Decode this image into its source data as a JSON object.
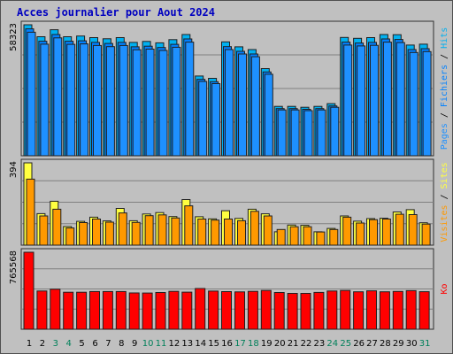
{
  "title": "Acces journalier pour Aout 2024",
  "colors": {
    "pages": "#1e90ff",
    "hits": "#00b0f0",
    "files": "#0080ff",
    "visits": "#ff9900",
    "sites": "#ffff40",
    "kb": "#ff0000",
    "weekend": "#00805a",
    "weekday": "#000000"
  },
  "chart_data": [
    {
      "type": "bar",
      "ylabel_max": "58323",
      "legend": [
        "Pages",
        "Fichiers",
        "Hits"
      ],
      "categories": [
        "1",
        "2",
        "3",
        "4",
        "5",
        "6",
        "7",
        "8",
        "9",
        "10",
        "11",
        "12",
        "13",
        "14",
        "15",
        "16",
        "17",
        "18",
        "19",
        "20",
        "21",
        "22",
        "23",
        "24",
        "25",
        "26",
        "27",
        "28",
        "29",
        "30",
        "31"
      ],
      "weekend_days": [
        "3",
        "4",
        "10",
        "11",
        "17",
        "18",
        "24",
        "25",
        "31"
      ],
      "ylim": [
        0,
        58323
      ],
      "series": [
        {
          "name": "Hits",
          "values": [
            58323,
            53000,
            56100,
            53000,
            53300,
            52600,
            52100,
            52600,
            50500,
            50900,
            50300,
            51700,
            54000,
            35500,
            34500,
            50700,
            48500,
            47300,
            38800,
            22000,
            22000,
            21600,
            22000,
            23200,
            52700,
            52300,
            52600,
            54000,
            53900,
            49300,
            49700
          ]
        },
        {
          "name": "Fichiers",
          "values": [
            56500,
            51000,
            54000,
            51000,
            51200,
            50500,
            50000,
            50500,
            48500,
            48800,
            48200,
            49600,
            52000,
            34000,
            33000,
            48600,
            46500,
            45300,
            37300,
            21000,
            21000,
            20700,
            21000,
            22200,
            50600,
            50200,
            50500,
            52000,
            51800,
            47300,
            47700
          ]
        },
        {
          "name": "Pages",
          "values": [
            55000,
            49700,
            52500,
            49600,
            49800,
            49100,
            48600,
            49100,
            47200,
            47500,
            46900,
            48300,
            50600,
            33100,
            32100,
            47300,
            45300,
            44100,
            36300,
            20400,
            20400,
            20100,
            20400,
            21600,
            49300,
            48900,
            49200,
            50600,
            50400,
            46000,
            46400
          ]
        }
      ]
    },
    {
      "type": "bar",
      "ylabel_max": "394",
      "legend": [
        "Visites",
        "Sites"
      ],
      "categories": [
        "1",
        "2",
        "3",
        "4",
        "5",
        "6",
        "7",
        "8",
        "9",
        "10",
        "11",
        "12",
        "13",
        "14",
        "15",
        "16",
        "17",
        "18",
        "19",
        "20",
        "21",
        "22",
        "23",
        "24",
        "25",
        "26",
        "27",
        "28",
        "29",
        "30",
        "31"
      ],
      "ylim": [
        0,
        394
      ],
      "series": [
        {
          "name": "Visites",
          "values": [
            394,
            151,
            210,
            89,
            114,
            134,
            116,
            176,
            117,
            149,
            156,
            137,
            218,
            136,
            126,
            165,
            128,
            172,
            150,
            64,
            96,
            95,
            64,
            80,
            140,
            115,
            127,
            129,
            159,
            170,
            107
          ]
        },
        {
          "name": "Sites",
          "values": [
            316,
            140,
            172,
            82,
            108,
            125,
            110,
            154,
            109,
            141,
            145,
            130,
            188,
            125,
            120,
            125,
            117,
            162,
            140,
            75,
            88,
            88,
            63,
            75,
            134,
            106,
            122,
            125,
            148,
            146,
            101
          ]
        }
      ]
    },
    {
      "type": "bar",
      "ylabel_max": "765568",
      "legend": [
        "Ko"
      ],
      "categories": [
        "1",
        "2",
        "3",
        "4",
        "5",
        "6",
        "7",
        "8",
        "9",
        "10",
        "11",
        "12",
        "13",
        "14",
        "15",
        "16",
        "17",
        "18",
        "19",
        "20",
        "21",
        "22",
        "23",
        "24",
        "25",
        "26",
        "27",
        "28",
        "29",
        "30",
        "31"
      ],
      "ylim": [
        0,
        765568
      ],
      "series": [
        {
          "name": "Ko",
          "values": [
            765568,
            380000,
            398000,
            368000,
            368000,
            375000,
            375000,
            375000,
            361000,
            360000,
            365000,
            377000,
            369000,
            405000,
            379000,
            374000,
            371000,
            377000,
            385000,
            365000,
            356000,
            356000,
            366000,
            380000,
            385000,
            372000,
            382000,
            372000,
            376000,
            384000,
            373000
          ]
        }
      ]
    }
  ]
}
